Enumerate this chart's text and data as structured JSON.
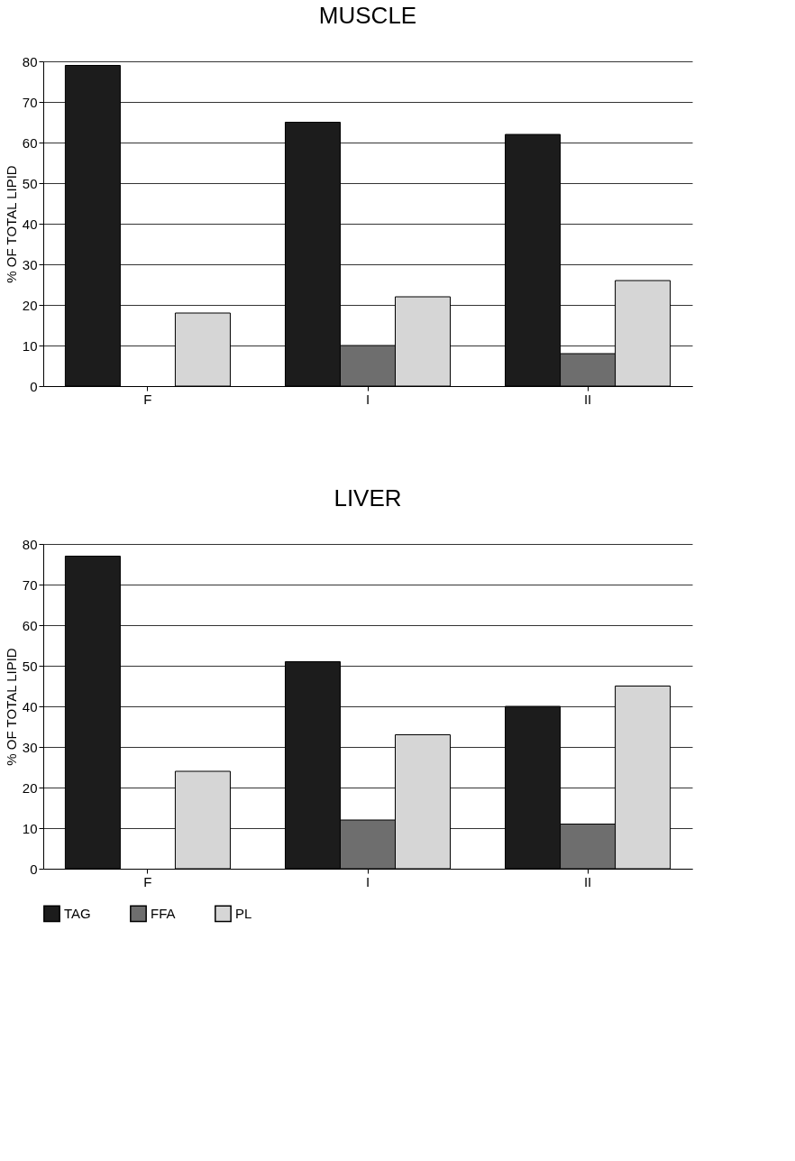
{
  "chart_data": [
    {
      "type": "bar",
      "title": "MUSCLE",
      "ylabel": "% OF TOTAL LIPID",
      "categories": [
        "F",
        "I",
        "II"
      ],
      "ylim": [
        0,
        80
      ],
      "yticks": [
        0,
        10,
        20,
        30,
        40,
        50,
        60,
        70,
        80
      ],
      "grid": "y",
      "legend": false,
      "series": [
        {
          "color": "#1c1c1c",
          "values": [
            79,
            65,
            62
          ]
        },
        {
          "color": "#6e6e6e",
          "values": [
            null,
            10,
            8
          ]
        },
        {
          "color": "#d6d6d6",
          "values": [
            18,
            22,
            26
          ]
        }
      ]
    },
    {
      "type": "bar",
      "title": "LIVER",
      "ylabel": "% OF TOTAL LIPID",
      "categories": [
        "F",
        "I",
        "II"
      ],
      "ylim": [
        0,
        80
      ],
      "yticks": [
        0,
        10,
        20,
        30,
        40,
        50,
        60,
        70,
        80
      ],
      "grid": "y",
      "legend": "bottom",
      "series": [
        {
          "name": "TAG",
          "color": "#1c1c1c",
          "values": [
            77,
            51,
            40
          ]
        },
        {
          "name": "FFA",
          "color": "#6e6e6e",
          "values": [
            null,
            12,
            11
          ]
        },
        {
          "name": "PL",
          "color": "#d6d6d6",
          "values": [
            24,
            33,
            45
          ]
        }
      ]
    }
  ]
}
